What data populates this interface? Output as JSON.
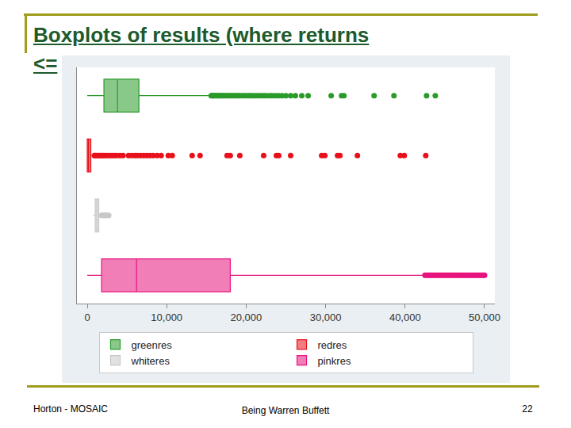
{
  "slide": {
    "title_lines": [
      "Boxplots of results (where returns",
      "<="
    ],
    "footer_left": "Horton - MOSAIC",
    "footer_center": "Being Warren Buffett",
    "page": "22"
  },
  "chart_data": {
    "type": "box",
    "orientation": "horizontal",
    "grid": false,
    "legend": "bottom",
    "tick_labels": "x",
    "xlim": [
      -1300,
      51300
    ],
    "xticks": [
      0,
      {
        "value": 10000,
        "label": "10,000"
      },
      {
        "value": 20000,
        "label": "20,000"
      },
      {
        "value": 30000,
        "label": "30,000"
      },
      {
        "value": 40000,
        "label": "40,000"
      },
      {
        "value": 50000,
        "label": "50,000"
      }
    ],
    "series": [
      {
        "name": "greenres",
        "color": "#2a9a2a",
        "lowerfence": 0,
        "q1": 2100,
        "median": 3800,
        "q3": 6500,
        "upperfence": 15500,
        "outliers": [
          15600,
          15700,
          15800,
          15900,
          16000,
          16200,
          16300,
          16500,
          16600,
          16800,
          17000,
          17100,
          17300,
          17500,
          17700,
          17900,
          18000,
          18200,
          18400,
          18600,
          18800,
          19000,
          19200,
          19500,
          19700,
          20000,
          20300,
          20500,
          20800,
          21100,
          21400,
          21700,
          22000,
          22300,
          22600,
          23000,
          23300,
          23700,
          24100,
          24500,
          25000,
          25600,
          26200,
          27000,
          27800,
          30700,
          32000,
          32300,
          36100,
          38600,
          42700,
          43800
        ]
      },
      {
        "name": "redres",
        "color": "#e8101a",
        "lowerfence": 0,
        "q1": 0,
        "median": 150,
        "q3": 450,
        "upperfence": 800,
        "outliers": [
          900,
          1000,
          1200,
          1400,
          1600,
          1800,
          2000,
          2200,
          2500,
          2800,
          3100,
          3400,
          3700,
          4100,
          4500,
          5200,
          5600,
          6000,
          6300,
          6700,
          7100,
          7500,
          7900,
          8300,
          8800,
          9300,
          10200,
          10700,
          13200,
          14200,
          17600,
          18000,
          19200,
          22200,
          23800,
          24100,
          25600,
          29500,
          29900,
          31500,
          31800,
          34000,
          39400,
          39900,
          42600
        ]
      },
      {
        "name": "whiteres",
        "color": "#c8c8c8",
        "lowerfence": 700,
        "q1": 1000,
        "median": 1200,
        "q3": 1450,
        "upperfence": 1700,
        "outliers": [
          1800,
          1900,
          2000,
          2100,
          2200,
          2300,
          2400,
          2500,
          2600,
          2700
        ]
      },
      {
        "name": "pinkres",
        "color": "#e8147e",
        "lowerfence": 0,
        "q1": 1800,
        "median": 6200,
        "q3": 18000,
        "upperfence": 42300,
        "outliers": [
          42500,
          42700,
          42900,
          43100,
          43300,
          43500,
          43700,
          43900,
          44100,
          44300,
          44500,
          44700,
          44900,
          45100,
          45300,
          45500,
          45700,
          45900,
          46100,
          46300,
          46500,
          46700,
          46900,
          47100,
          47300,
          47500,
          47700,
          47900,
          48100,
          48300,
          48500,
          48700,
          48900,
          49100,
          49300,
          49500,
          49700,
          49900,
          50000
        ]
      }
    ]
  }
}
